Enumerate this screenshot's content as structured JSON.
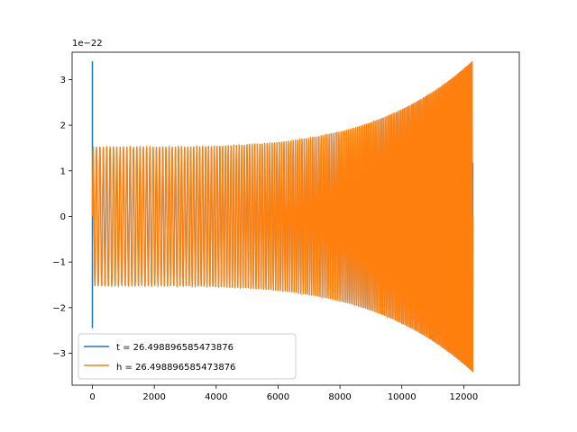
{
  "chart_data": {
    "type": "line",
    "title": "",
    "xlabel": "",
    "ylabel": "",
    "xlim": [
      -656,
      13796
    ],
    "ylim": [
      -3.7,
      3.6
    ],
    "y_scale_label": "1e−22",
    "x_ticks": [
      0,
      2000,
      4000,
      6000,
      8000,
      10000,
      12000
    ],
    "x_tick_labels": [
      "0",
      "2000",
      "4000",
      "6000",
      "8000",
      "10000",
      "12000"
    ],
    "y_ticks": [
      -3,
      -2,
      -1,
      0,
      1,
      2,
      3
    ],
    "y_tick_labels": [
      "−3",
      "−2",
      "−1",
      "0",
      "1",
      "2",
      "3"
    ],
    "grid": false,
    "legend_position": "lower-left",
    "series": [
      {
        "name": "t = 26.498896585473876",
        "color": "#1f77b4",
        "note_spike": {
          "x": 0,
          "ymax": 3.4,
          "ymin": -2.45
        }
      },
      {
        "name": "h = 26.498896585473876",
        "color": "#ff7f0e"
      }
    ],
    "waveform": {
      "x_start": 0,
      "x_end": 12300,
      "amplitude_start": 1.52,
      "amplitude_end": 3.42,
      "approx_cycles_visible": 150
    }
  }
}
